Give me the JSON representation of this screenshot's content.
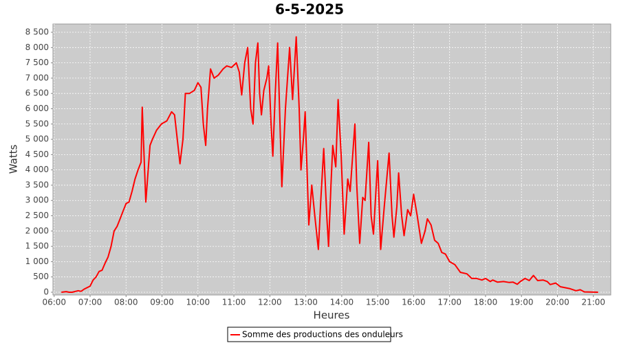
{
  "chart_data": {
    "type": "line",
    "title": "6-5-2025",
    "x_label": "Heures",
    "y_label": "Watts",
    "x": [
      "06:12",
      "06:20",
      "06:25",
      "06:30",
      "06:40",
      "06:45",
      "06:50",
      "07:00",
      "07:05",
      "07:10",
      "07:15",
      "07:20",
      "07:25",
      "07:30",
      "07:35",
      "07:40",
      "07:45",
      "07:50",
      "07:55",
      "08:00",
      "08:05",
      "08:10",
      "08:15",
      "08:20",
      "08:23",
      "08:25",
      "08:27",
      "08:33",
      "08:40",
      "08:44",
      "08:51",
      "08:59",
      "09:08",
      "09:16",
      "09:21",
      "09:30",
      "09:35",
      "09:39",
      "09:46",
      "09:54",
      "10:00",
      "10:05",
      "10:09",
      "10:13",
      "10:16",
      "10:21",
      "10:27",
      "10:34",
      "10:42",
      "10:48",
      "10:56",
      "11:04",
      "11:09",
      "11:13",
      "11:18",
      "11:23",
      "11:28",
      "11:32",
      "11:36",
      "11:40",
      "11:43",
      "11:46",
      "11:50",
      "11:55",
      "11:58",
      "12:02",
      "12:05",
      "12:09",
      "12:13",
      "12:17",
      "12:20",
      "12:26",
      "12:33",
      "12:38",
      "12:44",
      "12:49",
      "12:52",
      "12:56",
      "12:59",
      "13:05",
      "13:10",
      "13:15",
      "13:21",
      "13:25",
      "13:30",
      "13:35",
      "13:38",
      "13:42",
      "13:45",
      "13:50",
      "13:54",
      "13:59",
      "14:04",
      "14:10",
      "14:14",
      "14:22",
      "14:25",
      "14:30",
      "14:35",
      "14:39",
      "14:45",
      "14:49",
      "14:53",
      "15:00",
      "15:05",
      "15:11",
      "15:19",
      "15:24",
      "15:27",
      "15:32",
      "15:35",
      "15:40",
      "15:44",
      "15:50",
      "15:55",
      "16:00",
      "16:06",
      "16:13",
      "16:19",
      "16:23",
      "16:29",
      "16:35",
      "16:41",
      "16:47",
      "16:53",
      "17:00",
      "17:09",
      "17:18",
      "17:29",
      "17:37",
      "17:45",
      "17:54",
      "18:00",
      "18:08",
      "18:12",
      "18:20",
      "18:30",
      "18:39",
      "18:46",
      "18:53",
      "18:58",
      "19:06",
      "19:13",
      "19:20",
      "19:27",
      "19:36",
      "19:43",
      "19:48",
      "19:57",
      "20:05",
      "20:20",
      "20:31",
      "20:38",
      "20:45",
      "21:08"
    ],
    "series": [
      {
        "name": "Somme des productions des onduleurs",
        "color": "#ff0000",
        "values": [
          0,
          20,
          0,
          0,
          50,
          30,
          100,
          200,
          400,
          500,
          680,
          720,
          950,
          1150,
          1500,
          2000,
          2150,
          2400,
          2650,
          2900,
          2950,
          3300,
          3700,
          4000,
          4150,
          4250,
          6050,
          2950,
          4800,
          5000,
          5300,
          5500,
          5600,
          5900,
          5800,
          4200,
          5000,
          6500,
          6500,
          6600,
          6850,
          6700,
          5500,
          4800,
          6000,
          7300,
          7000,
          7100,
          7300,
          7400,
          7350,
          7500,
          7200,
          6450,
          7500,
          8000,
          6000,
          5500,
          7500,
          8150,
          6500,
          5800,
          6600,
          7000,
          7400,
          5500,
          4450,
          6500,
          8150,
          5500,
          3450,
          6000,
          8000,
          6300,
          8350,
          6000,
          4000,
          5000,
          5900,
          2200,
          3500,
          2500,
          1400,
          3000,
          4700,
          2500,
          1500,
          3500,
          4800,
          4100,
          6300,
          4500,
          1900,
          3700,
          3300,
          5500,
          3500,
          1600,
          3100,
          3000,
          4900,
          2500,
          1900,
          4300,
          1400,
          2800,
          4550,
          2500,
          1800,
          2800,
          3900,
          2500,
          1850,
          2700,
          2500,
          3200,
          2500,
          1600,
          2000,
          2400,
          2200,
          1700,
          1600,
          1300,
          1250,
          1000,
          900,
          650,
          600,
          450,
          450,
          400,
          450,
          350,
          400,
          330,
          350,
          320,
          330,
          260,
          350,
          450,
          380,
          550,
          380,
          400,
          350,
          250,
          300,
          180,
          120,
          50,
          80,
          10,
          0
        ]
      }
    ],
    "xlim": [
      "05:58",
      "21:29"
    ],
    "xticks": [
      "06:00",
      "07:00",
      "08:00",
      "09:00",
      "10:00",
      "11:00",
      "12:00",
      "13:00",
      "14:00",
      "15:00",
      "16:00",
      "17:00",
      "18:00",
      "19:00",
      "20:00",
      "21:00"
    ],
    "ylim": [
      -90,
      8770
    ],
    "yticks": [
      0,
      500,
      {
        "value": 1000,
        "label": "1 000"
      },
      {
        "value": 1500,
        "label": "1 500"
      },
      {
        "value": 2000,
        "label": "2 000"
      },
      {
        "value": 2500,
        "label": "2 500"
      },
      {
        "value": 3000,
        "label": "3 000"
      },
      {
        "value": 3500,
        "label": "3 500"
      },
      {
        "value": 4000,
        "label": "4 000"
      },
      {
        "value": 4500,
        "label": "4 500"
      },
      {
        "value": 5000,
        "label": "5 000"
      },
      {
        "value": 5500,
        "label": "5 500"
      },
      {
        "value": 6000,
        "label": "6 000"
      },
      {
        "value": 6500,
        "label": "6 500"
      },
      {
        "value": 7000,
        "label": "7 000"
      },
      {
        "value": 7500,
        "label": "7 500"
      },
      {
        "value": 8000,
        "label": "8 000"
      },
      {
        "value": 8500,
        "label": "8 500"
      }
    ],
    "grid": true
  }
}
